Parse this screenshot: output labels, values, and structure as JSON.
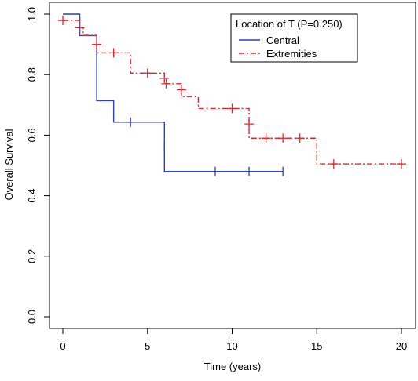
{
  "chart_data": {
    "type": "line",
    "subtype": "kaplan-meier",
    "xlabel": "Time (years)",
    "ylabel": "Overall Survival",
    "xlim": [
      0,
      20
    ],
    "ylim": [
      0,
      1.0
    ],
    "x_ticks": [
      0,
      5,
      10,
      15,
      20
    ],
    "x_tick_labels": [
      "0",
      "5",
      "10",
      "15",
      "20"
    ],
    "y_ticks": [
      0.0,
      0.2,
      0.4,
      0.6,
      0.8,
      1.0
    ],
    "y_tick_labels": [
      "0.0",
      "0.2",
      "0.4",
      "0.6",
      "0.8",
      "1.0"
    ],
    "grid": false,
    "legend": {
      "title": "Location of T (P=0.250)",
      "placement": "top-right"
    },
    "series": [
      {
        "name": "Central",
        "color": "#2f3fbf",
        "line_style": "solid",
        "steps": [
          [
            0,
            1.0
          ],
          [
            1,
            0.929
          ],
          [
            2,
            0.714
          ],
          [
            3,
            0.643
          ],
          [
            6,
            0.48
          ],
          [
            13,
            0.48
          ]
        ],
        "censored": [
          [
            4,
            0.643
          ],
          [
            6,
            0.563
          ],
          [
            9,
            0.48
          ],
          [
            11,
            0.48
          ],
          [
            13,
            0.48
          ]
        ]
      },
      {
        "name": "Extremities",
        "color": "#e8262a",
        "line_style": "dashdot",
        "steps": [
          [
            0,
            0.979
          ],
          [
            1,
            0.955
          ],
          [
            1.2,
            0.93
          ],
          [
            2,
            0.872
          ],
          [
            4,
            0.805
          ],
          [
            6,
            0.77
          ],
          [
            7,
            0.727
          ],
          [
            8,
            0.688
          ],
          [
            11,
            0.59
          ],
          [
            15,
            0.505
          ],
          [
            20,
            0.505
          ]
        ],
        "censored": [
          [
            0,
            0.979
          ],
          [
            1,
            0.955
          ],
          [
            2,
            0.9
          ],
          [
            3,
            0.872
          ],
          [
            5,
            0.805
          ],
          [
            6,
            0.788
          ],
          [
            6.1,
            0.77
          ],
          [
            7,
            0.75
          ],
          [
            10,
            0.688
          ],
          [
            11,
            0.637
          ],
          [
            12,
            0.59
          ],
          [
            13,
            0.59
          ],
          [
            14,
            0.59
          ],
          [
            16,
            0.505
          ],
          [
            20,
            0.505
          ]
        ]
      }
    ]
  }
}
